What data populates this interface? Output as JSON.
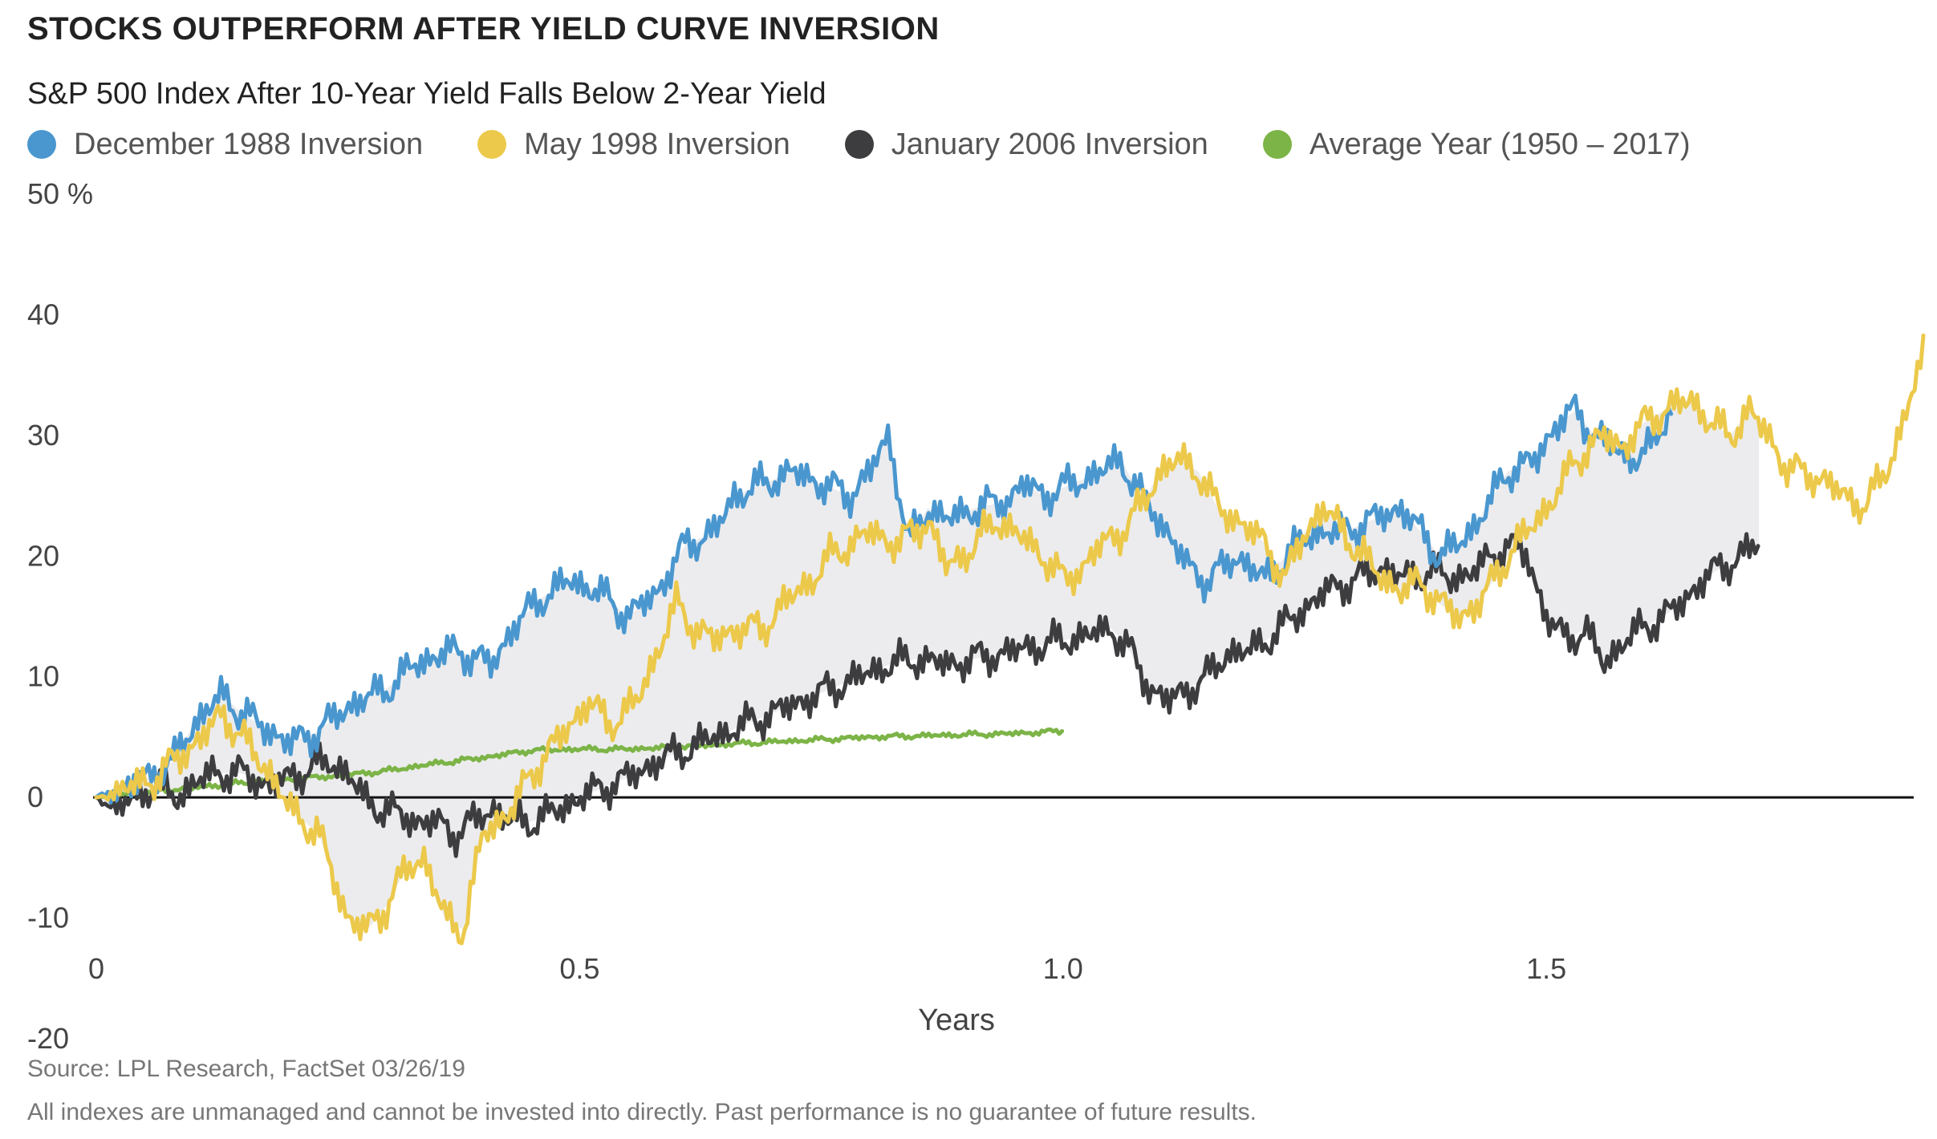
{
  "header": {
    "title": "STOCKS OUTPERFORM AFTER YIELD CURVE INVERSION",
    "subtitle": "S&P 500 Index After 10-Year Yield Falls Below 2-Year Yield"
  },
  "legend": [
    {
      "label": "December 1988 Inversion",
      "color": "#4a97cf"
    },
    {
      "label": "May 1998 Inversion",
      "color": "#ecc94b"
    },
    {
      "label": "January 2006 Inversion",
      "color": "#3d3d40"
    },
    {
      "label": "Average Year (1950 – 2017)",
      "color": "#7cb447"
    }
  ],
  "footer": {
    "source": "Source: LPL Research, FactSet 03/26/19",
    "disclaimer": "All indexes are unmanaged and cannot be invested into directly. Past performance is no guarantee of future results."
  },
  "chart_data": {
    "type": "line",
    "title": "STOCKS OUTPERFORM AFTER YIELD CURVE INVERSION",
    "subtitle": "S&P 500 Index After 10-Year Yield Falls Below 2-Year Yield",
    "xlabel": "Years",
    "ylabel": "",
    "xlim": [
      0,
      1.88
    ],
    "ylim": [
      -20,
      50
    ],
    "xticks": [
      {
        "value": 0,
        "label": "0"
      },
      {
        "value": 0.5,
        "label": "0.5"
      },
      {
        "value": 1.0,
        "label": "1.0"
      },
      {
        "value": 1.5,
        "label": "1.5"
      }
    ],
    "yticks": [
      {
        "value": 50,
        "label": "50 %"
      },
      {
        "value": 40,
        "label": "40"
      },
      {
        "value": 30,
        "label": "30"
      },
      {
        "value": 20,
        "label": "20"
      },
      {
        "value": 10,
        "label": "10"
      },
      {
        "value": 0,
        "label": "0"
      },
      {
        "value": -10,
        "label": "-10"
      },
      {
        "value": -20,
        "label": "-20"
      }
    ],
    "grid": false,
    "legend_position": "top-left",
    "shaded_range_between_series": true,
    "series": [
      {
        "name": "December 1988 Inversion",
        "color": "#4a97cf",
        "points": [
          [
            0,
            0
          ],
          [
            0.02,
            0.5
          ],
          [
            0.05,
            1.5
          ],
          [
            0.08,
            3
          ],
          [
            0.1,
            6
          ],
          [
            0.13,
            8.5
          ],
          [
            0.15,
            7
          ],
          [
            0.17,
            6
          ],
          [
            0.2,
            4.5
          ],
          [
            0.23,
            5.5
          ],
          [
            0.26,
            7.5
          ],
          [
            0.3,
            9
          ],
          [
            0.33,
            11
          ],
          [
            0.36,
            12
          ],
          [
            0.38,
            12
          ],
          [
            0.41,
            11
          ],
          [
            0.43,
            14
          ],
          [
            0.46,
            16.5
          ],
          [
            0.49,
            18
          ],
          [
            0.52,
            17
          ],
          [
            0.55,
            15
          ],
          [
            0.58,
            17
          ],
          [
            0.61,
            21
          ],
          [
            0.64,
            22
          ],
          [
            0.66,
            25
          ],
          [
            0.69,
            26
          ],
          [
            0.72,
            27
          ],
          [
            0.75,
            26
          ],
          [
            0.78,
            25
          ],
          [
            0.8,
            27
          ],
          [
            0.82,
            30
          ],
          [
            0.84,
            21
          ],
          [
            0.86,
            24
          ],
          [
            0.88,
            23
          ],
          [
            0.91,
            24
          ],
          [
            0.94,
            24.5
          ],
          [
            0.96,
            26
          ],
          [
            0.98,
            25
          ],
          [
            1.01,
            26
          ],
          [
            1.04,
            27
          ],
          [
            1.06,
            28
          ],
          [
            1.08,
            25
          ],
          [
            1.1,
            23
          ],
          [
            1.13,
            19
          ],
          [
            1.15,
            18
          ],
          [
            1.18,
            20
          ],
          [
            1.21,
            18
          ],
          [
            1.23,
            20
          ],
          [
            1.26,
            22
          ],
          [
            1.29,
            22
          ],
          [
            1.32,
            23
          ],
          [
            1.35,
            24
          ],
          [
            1.37,
            22
          ],
          [
            1.39,
            20
          ],
          [
            1.41,
            21
          ],
          [
            1.43,
            23
          ],
          [
            1.46,
            27
          ],
          [
            1.49,
            28
          ],
          [
            1.51,
            31
          ],
          [
            1.53,
            32
          ],
          [
            1.55,
            30
          ],
          [
            1.57,
            29
          ],
          [
            1.59,
            28
          ],
          [
            1.61,
            29
          ],
          [
            1.63,
            33
          ]
        ]
      },
      {
        "name": "May 1998 Inversion",
        "color": "#ecc94b",
        "points": [
          [
            0,
            0
          ],
          [
            0.02,
            0.5
          ],
          [
            0.04,
            1
          ],
          [
            0.06,
            1.5
          ],
          [
            0.08,
            3
          ],
          [
            0.11,
            5
          ],
          [
            0.13,
            7
          ],
          [
            0.15,
            5
          ],
          [
            0.18,
            2
          ],
          [
            0.2,
            -1
          ],
          [
            0.23,
            -3
          ],
          [
            0.26,
            -10
          ],
          [
            0.28,
            -11
          ],
          [
            0.3,
            -9
          ],
          [
            0.32,
            -6
          ],
          [
            0.34,
            -5
          ],
          [
            0.36,
            -10
          ],
          [
            0.38,
            -11
          ],
          [
            0.4,
            -3
          ],
          [
            0.43,
            -1
          ],
          [
            0.45,
            2
          ],
          [
            0.48,
            5
          ],
          [
            0.51,
            8
          ],
          [
            0.53,
            6
          ],
          [
            0.56,
            8
          ],
          [
            0.58,
            12
          ],
          [
            0.6,
            16
          ],
          [
            0.62,
            14
          ],
          [
            0.64,
            13
          ],
          [
            0.66,
            14
          ],
          [
            0.69,
            14
          ],
          [
            0.71,
            16
          ],
          [
            0.74,
            18
          ],
          [
            0.76,
            20
          ],
          [
            0.78,
            21
          ],
          [
            0.8,
            22
          ],
          [
            0.83,
            21
          ],
          [
            0.86,
            23
          ],
          [
            0.88,
            19
          ],
          [
            0.91,
            21
          ],
          [
            0.93,
            23
          ],
          [
            0.95,
            22
          ],
          [
            0.98,
            20
          ],
          [
            1.0,
            18
          ],
          [
            1.02,
            19
          ],
          [
            1.04,
            21
          ],
          [
            1.06,
            22
          ],
          [
            1.08,
            24
          ],
          [
            1.1,
            27
          ],
          [
            1.12,
            28
          ],
          [
            1.14,
            27
          ],
          [
            1.16,
            24
          ],
          [
            1.18,
            23
          ],
          [
            1.21,
            21
          ],
          [
            1.23,
            18
          ],
          [
            1.25,
            22
          ],
          [
            1.27,
            24
          ],
          [
            1.3,
            21
          ],
          [
            1.32,
            19
          ],
          [
            1.35,
            17
          ],
          [
            1.37,
            18
          ],
          [
            1.39,
            16
          ],
          [
            1.41,
            15
          ],
          [
            1.43,
            16
          ],
          [
            1.46,
            20
          ],
          [
            1.48,
            22
          ],
          [
            1.51,
            25
          ],
          [
            1.53,
            28
          ],
          [
            1.56,
            30
          ],
          [
            1.58,
            29
          ],
          [
            1.6,
            31
          ],
          [
            1.62,
            32
          ],
          [
            1.65,
            33
          ],
          [
            1.67,
            31
          ],
          [
            1.69,
            30
          ],
          [
            1.71,
            32
          ],
          [
            1.73,
            30
          ],
          [
            1.75,
            27
          ],
          [
            1.77,
            27
          ],
          [
            1.79,
            26
          ],
          [
            1.81,
            25
          ],
          [
            1.83,
            24
          ],
          [
            1.85,
            27
          ],
          [
            1.87,
            31
          ],
          [
            1.89,
            37
          ]
        ]
      },
      {
        "name": "January 2006 Inversion",
        "color": "#3d3d40",
        "points": [
          [
            0,
            0
          ],
          [
            0.02,
            -1
          ],
          [
            0.04,
            0
          ],
          [
            0.06,
            1
          ],
          [
            0.08,
            0
          ],
          [
            0.1,
            1
          ],
          [
            0.12,
            2
          ],
          [
            0.15,
            2
          ],
          [
            0.18,
            1
          ],
          [
            0.21,
            2
          ],
          [
            0.24,
            3
          ],
          [
            0.26,
            2
          ],
          [
            0.28,
            -0.5
          ],
          [
            0.3,
            -1
          ],
          [
            0.33,
            -2
          ],
          [
            0.35,
            -2
          ],
          [
            0.37,
            -3
          ],
          [
            0.39,
            -2
          ],
          [
            0.41,
            -1
          ],
          [
            0.43,
            -2
          ],
          [
            0.45,
            -2
          ],
          [
            0.48,
            -1
          ],
          [
            0.5,
            0
          ],
          [
            0.53,
            1
          ],
          [
            0.56,
            2
          ],
          [
            0.58,
            3
          ],
          [
            0.61,
            4
          ],
          [
            0.64,
            5
          ],
          [
            0.67,
            6
          ],
          [
            0.7,
            7
          ],
          [
            0.73,
            8
          ],
          [
            0.76,
            9
          ],
          [
            0.79,
            10
          ],
          [
            0.82,
            11
          ],
          [
            0.85,
            11.5
          ],
          [
            0.88,
            11
          ],
          [
            0.91,
            11.5
          ],
          [
            0.94,
            12
          ],
          [
            0.97,
            12.5
          ],
          [
            1.0,
            13
          ],
          [
            1.03,
            13.5
          ],
          [
            1.05,
            14
          ],
          [
            1.07,
            12
          ],
          [
            1.09,
            9
          ],
          [
            1.11,
            8
          ],
          [
            1.13,
            9
          ],
          [
            1.15,
            10
          ],
          [
            1.17,
            12
          ],
          [
            1.19,
            12
          ],
          [
            1.21,
            13
          ],
          [
            1.24,
            15
          ],
          [
            1.27,
            17
          ],
          [
            1.3,
            18
          ],
          [
            1.33,
            19
          ],
          [
            1.36,
            18
          ],
          [
            1.38,
            19
          ],
          [
            1.4,
            18
          ],
          [
            1.43,
            19
          ],
          [
            1.46,
            21
          ],
          [
            1.48,
            20
          ],
          [
            1.5,
            15
          ],
          [
            1.52,
            13
          ],
          [
            1.54,
            14
          ],
          [
            1.56,
            11
          ],
          [
            1.58,
            13
          ],
          [
            1.6,
            14
          ],
          [
            1.62,
            15
          ],
          [
            1.64,
            16
          ],
          [
            1.66,
            18
          ],
          [
            1.68,
            19
          ],
          [
            1.7,
            20
          ],
          [
            1.72,
            21
          ]
        ]
      },
      {
        "name": "Average Year (1950 – 2017)",
        "color": "#7cb447",
        "points": [
          [
            0,
            0
          ],
          [
            0.05,
            0.4
          ],
          [
            0.1,
            0.8
          ],
          [
            0.15,
            1.2
          ],
          [
            0.2,
            1.5
          ],
          [
            0.25,
            1.8
          ],
          [
            0.3,
            2.2
          ],
          [
            0.35,
            2.8
          ],
          [
            0.4,
            3.3
          ],
          [
            0.45,
            3.9
          ],
          [
            0.5,
            4.0
          ],
          [
            0.55,
            4.0
          ],
          [
            0.6,
            4.2
          ],
          [
            0.65,
            4.4
          ],
          [
            0.7,
            4.6
          ],
          [
            0.75,
            4.8
          ],
          [
            0.8,
            5.0
          ],
          [
            0.85,
            5.1
          ],
          [
            0.9,
            5.2
          ],
          [
            0.95,
            5.3
          ],
          [
            1.0,
            5.5
          ]
        ]
      }
    ]
  }
}
